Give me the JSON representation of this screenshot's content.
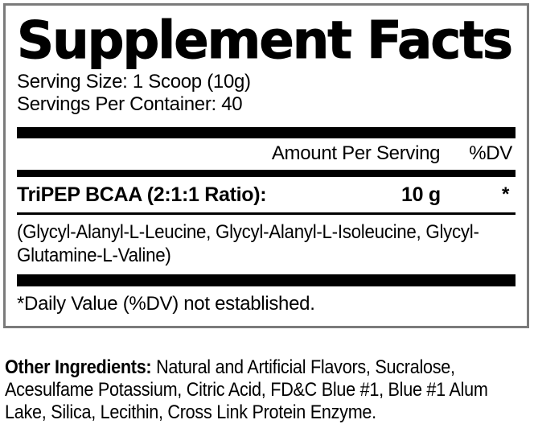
{
  "label": {
    "title": "Supplement Facts",
    "serving_size": "Serving Size: 1 Scoop (10g)",
    "servings_per_container": "Servings Per Container: 40",
    "columns": {
      "amount_header": "Amount Per Serving",
      "dv_header": "%DV"
    },
    "rows": [
      {
        "name": "TriPEP BCAA (2:1:1 Ratio):",
        "amount": "10 g",
        "dv": "*"
      }
    ],
    "ingredients_note": "(Glycyl-Alanyl-L-Leucine, Glycyl-Alanyl-L-Isoleucine, Glycyl-Glutamine-L-Valine)",
    "footnote": "*Daily Value (%DV) not established."
  },
  "other_ingredients": {
    "label": "Other Ingredients:",
    "text": "Natural and Artificial Flavors, Sucralose, Acesulfame Potassium, Citric Acid, FD&C Blue #1, Blue #1 Alum Lake, Silica, Lecithin, Cross Link Protein Enzyme."
  },
  "colors": {
    "text": "#000000",
    "bars": "#000000",
    "box_border": "#7b7b7b",
    "background": "#ffffff"
  }
}
